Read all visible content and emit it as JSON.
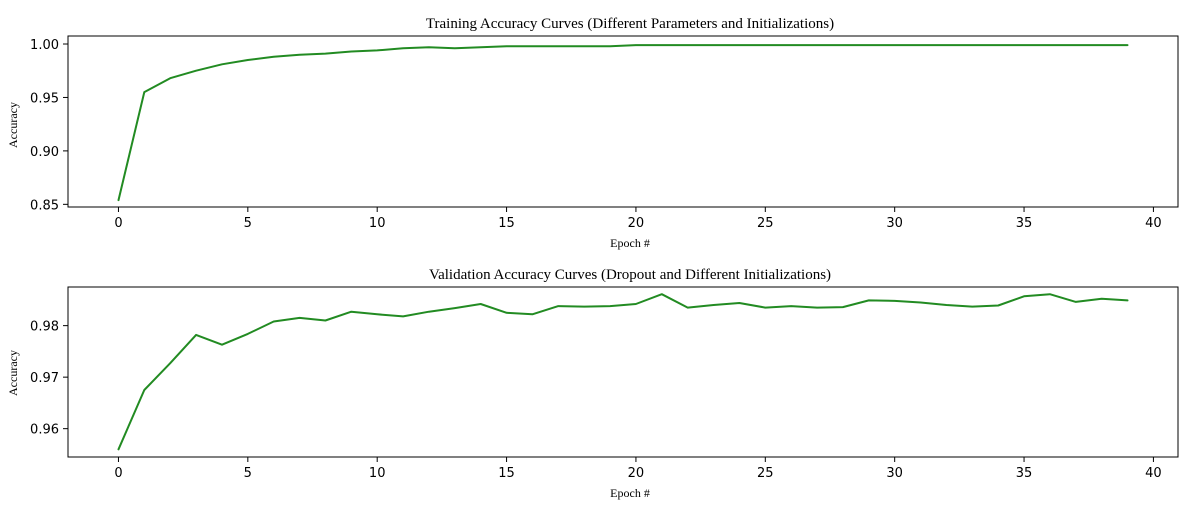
{
  "chart_data": [
    {
      "type": "line",
      "title": "Training Accuracy Curves (Different Parameters and Initializations)",
      "xlabel": "Epoch #",
      "ylabel": "Accuracy",
      "xlim": [
        -1.95,
        40.95
      ],
      "ylim": [
        0.8475,
        1.0075
      ],
      "xticks": [
        0,
        5,
        10,
        15,
        20,
        25,
        30,
        35,
        40
      ],
      "yticks": [
        0.85,
        0.9,
        0.95,
        1.0
      ],
      "ytick_labels": [
        "0.85",
        "0.90",
        "0.95",
        "1.00"
      ],
      "grid": false,
      "color": "#228b22",
      "series": [
        {
          "x": [
            0,
            1,
            2,
            3,
            4,
            5,
            6,
            7,
            8,
            9,
            10,
            11,
            12,
            13,
            14,
            15,
            16,
            17,
            18,
            19,
            20,
            21,
            22,
            23,
            24,
            25,
            26,
            27,
            28,
            29,
            30,
            31,
            32,
            33,
            34,
            35,
            36,
            37,
            38,
            39
          ],
          "values": [
            0.854,
            0.955,
            0.968,
            0.975,
            0.981,
            0.985,
            0.988,
            0.99,
            0.991,
            0.993,
            0.994,
            0.996,
            0.997,
            0.996,
            0.997,
            0.998,
            0.998,
            0.998,
            0.998,
            0.998,
            0.999,
            0.999,
            0.999,
            0.999,
            0.999,
            0.999,
            0.999,
            0.999,
            0.999,
            0.999,
            0.999,
            0.999,
            0.999,
            0.999,
            0.999,
            0.999,
            0.999,
            0.999,
            0.999,
            0.999
          ]
        }
      ]
    },
    {
      "type": "line",
      "title": "Validation Accuracy Curves (Dropout and Different Initializations)",
      "xlabel": "Epoch #",
      "ylabel": "Accuracy",
      "xlim": [
        -1.95,
        40.95
      ],
      "ylim": [
        0.9545,
        0.9875
      ],
      "xticks": [
        0,
        5,
        10,
        15,
        20,
        25,
        30,
        35,
        40
      ],
      "yticks": [
        0.96,
        0.97,
        0.98
      ],
      "ytick_labels": [
        "0.96",
        "0.97",
        "0.98"
      ],
      "grid": false,
      "color": "#228b22",
      "series": [
        {
          "x": [
            0,
            1,
            2,
            3,
            4,
            5,
            6,
            7,
            8,
            9,
            10,
            11,
            12,
            13,
            14,
            15,
            16,
            17,
            18,
            19,
            20,
            21,
            22,
            23,
            24,
            25,
            26,
            27,
            28,
            29,
            30,
            31,
            32,
            33,
            34,
            35,
            36,
            37,
            38,
            39
          ],
          "values": [
            0.956,
            0.9675,
            0.9727,
            0.9782,
            0.9763,
            0.9784,
            0.9808,
            0.9815,
            0.981,
            0.9827,
            0.9822,
            0.9818,
            0.9827,
            0.9834,
            0.9842,
            0.9825,
            0.9822,
            0.9838,
            0.9837,
            0.9838,
            0.9842,
            0.9861,
            0.9835,
            0.984,
            0.9844,
            0.9835,
            0.9838,
            0.9835,
            0.9836,
            0.9849,
            0.9848,
            0.9845,
            0.984,
            0.9837,
            0.9839,
            0.9857,
            0.9861,
            0.9846,
            0.9852,
            0.9849
          ]
        }
      ]
    }
  ]
}
